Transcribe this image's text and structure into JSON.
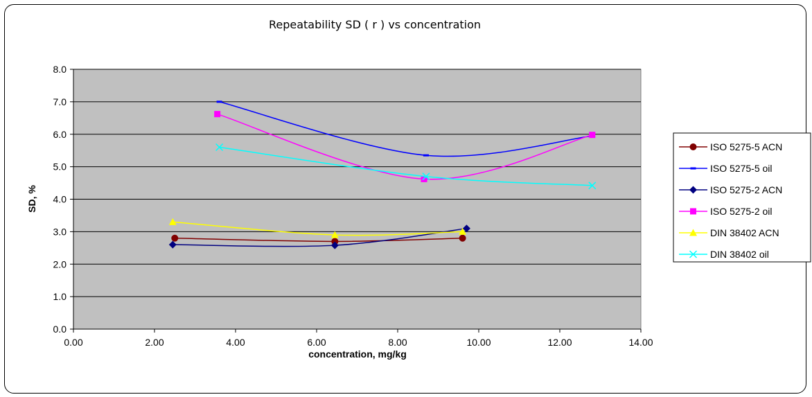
{
  "chart_data": {
    "type": "line",
    "title": "Repeatability SD ( r ) vs concentration",
    "xlabel": "concentration, mg/kg",
    "ylabel": "SD, %",
    "xlim": [
      0,
      14
    ],
    "ylim": [
      0,
      8
    ],
    "x_ticks": [
      "0.00",
      "2.00",
      "4.00",
      "6.00",
      "8.00",
      "10.00",
      "12.00",
      "14.00"
    ],
    "y_ticks": [
      "0.0",
      "1.0",
      "2.0",
      "3.0",
      "4.0",
      "5.0",
      "6.0",
      "7.0",
      "8.0"
    ],
    "grid": "horizontal",
    "plot_background": "#c0c0c0",
    "legend_position": "right",
    "series": [
      {
        "name": "ISO 5275-5 ACN",
        "color": "#800000",
        "marker": "circle",
        "x": [
          2.5,
          6.45,
          9.6
        ],
        "y": [
          2.8,
          2.7,
          2.8
        ]
      },
      {
        "name": "ISO 5275-5 oil",
        "color": "#0000ff",
        "marker": "dash",
        "x": [
          3.6,
          8.7,
          12.8
        ],
        "y": [
          7.0,
          5.35,
          5.95
        ]
      },
      {
        "name": "ISO 5275-2 ACN",
        "color": "#000080",
        "marker": "diamond",
        "x": [
          2.45,
          6.45,
          9.7
        ],
        "y": [
          2.6,
          2.58,
          3.1
        ]
      },
      {
        "name": "ISO 5275-2 oil",
        "color": "#ff00ff",
        "marker": "square",
        "x": [
          3.55,
          8.65,
          12.8
        ],
        "y": [
          6.62,
          4.62,
          5.98
        ]
      },
      {
        "name": "DIN 38402 ACN",
        "color": "#ffff00",
        "marker": "triangle",
        "x": [
          2.45,
          6.45,
          9.6
        ],
        "y": [
          3.3,
          2.9,
          3.0
        ]
      },
      {
        "name": "DIN 38402 oil",
        "color": "#00ffff",
        "marker": "x",
        "x": [
          3.6,
          8.7,
          12.8
        ],
        "y": [
          5.6,
          4.7,
          4.42
        ]
      }
    ]
  }
}
